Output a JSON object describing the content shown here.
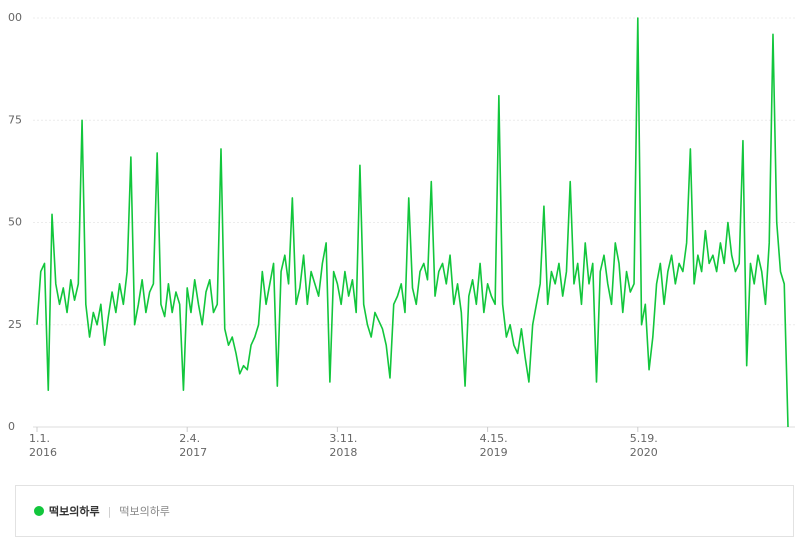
{
  "chart_data": {
    "type": "line",
    "yticks": [
      0,
      25,
      50,
      75,
      {
        "value": 100,
        "label": "00"
      }
    ],
    "ylim": [
      0,
      100
    ],
    "grid": true,
    "categories": [
      "1.1.",
      null,
      null,
      null,
      null,
      null,
      null,
      null,
      null,
      null,
      null,
      null,
      null,
      null,
      null,
      null,
      null,
      null,
      null,
      null,
      null,
      null,
      null,
      null,
      null,
      null,
      null,
      null,
      null,
      null,
      null,
      null,
      null,
      null,
      null,
      null,
      null,
      null,
      null,
      null,
      "2.4.",
      null,
      null,
      null,
      null,
      null,
      null,
      null,
      null,
      null,
      null,
      null,
      null,
      null,
      null,
      null,
      null,
      null,
      null,
      null,
      null,
      null,
      null,
      null,
      null,
      null,
      null,
      null,
      null,
      null,
      null,
      null,
      null,
      null,
      null,
      null,
      null,
      null,
      null,
      null,
      "3.11.",
      null,
      null,
      null,
      null,
      null,
      null,
      null,
      null,
      null,
      null,
      null,
      null,
      null,
      null,
      null,
      null,
      null,
      null,
      null,
      null,
      null,
      null,
      null,
      null,
      null,
      null,
      null,
      null,
      null,
      null,
      null,
      null,
      null,
      null,
      null,
      null,
      null,
      null,
      null,
      "4.15.",
      null,
      null,
      null,
      null,
      null,
      null,
      null,
      null,
      null,
      null,
      null,
      null,
      null,
      null,
      null,
      null,
      null,
      null,
      null,
      null,
      null,
      null,
      null,
      null,
      null,
      null,
      null,
      null,
      null,
      null,
      null,
      null,
      null,
      null,
      null,
      null,
      null,
      null,
      null,
      "5.19.",
      null,
      null,
      null,
      null,
      null,
      null,
      null,
      null,
      null,
      null,
      null,
      null,
      null,
      null,
      null,
      null,
      null,
      null,
      null,
      null,
      null,
      null,
      null,
      null,
      null,
      null,
      null,
      null,
      null,
      null,
      null,
      null,
      null,
      null,
      null,
      null,
      null,
      null,
      null,
      null
    ],
    "category_years": [
      "2016",
      null,
      null,
      null,
      null,
      null,
      null,
      null,
      null,
      null,
      null,
      null,
      null,
      null,
      null,
      null,
      null,
      null,
      null,
      null,
      null,
      null,
      null,
      null,
      null,
      null,
      null,
      null,
      null,
      null,
      null,
      null,
      null,
      null,
      null,
      null,
      null,
      null,
      null,
      null,
      "2017",
      null,
      null,
      null,
      null,
      null,
      null,
      null,
      null,
      null,
      null,
      null,
      null,
      null,
      null,
      null,
      null,
      null,
      null,
      null,
      null,
      null,
      null,
      null,
      null,
      null,
      null,
      null,
      null,
      null,
      null,
      null,
      null,
      null,
      null,
      null,
      null,
      null,
      null,
      null,
      "2018",
      null,
      null,
      null,
      null,
      null,
      null,
      null,
      null,
      null,
      null,
      null,
      null,
      null,
      null,
      null,
      null,
      null,
      null,
      null,
      null,
      null,
      null,
      null,
      null,
      null,
      null,
      null,
      null,
      null,
      null,
      null,
      null,
      null,
      null,
      null,
      null,
      null,
      null,
      null,
      "2019",
      null,
      null,
      null,
      null,
      null,
      null,
      null,
      null,
      null,
      null,
      null,
      null,
      null,
      null,
      null,
      null,
      null,
      null,
      null,
      null,
      null,
      null,
      null,
      null,
      null,
      null,
      null,
      null,
      null,
      null,
      null,
      null,
      null,
      null,
      null,
      null,
      null,
      null,
      null,
      "2020",
      null,
      null,
      null,
      null,
      null,
      null,
      null,
      null,
      null,
      null,
      null,
      null,
      null,
      null,
      null,
      null,
      null,
      null,
      null,
      null,
      null,
      null,
      null,
      null,
      null,
      null,
      null,
      null,
      null,
      null,
      null,
      null,
      null,
      null,
      null,
      null,
      null,
      null,
      null,
      null
    ],
    "series": [
      {
        "name": "떡보의하루",
        "label": "떡보의하루",
        "color": "#12c63c",
        "values": [
          25,
          38,
          40,
          9,
          52,
          35,
          30,
          34,
          28,
          36,
          31,
          35,
          75,
          30,
          22,
          28,
          25,
          30,
          20,
          27,
          33,
          28,
          35,
          30,
          38,
          66,
          25,
          30,
          36,
          28,
          33,
          35,
          67,
          30,
          27,
          35,
          28,
          33,
          30,
          9,
          34,
          28,
          36,
          30,
          25,
          33,
          36,
          28,
          30,
          68,
          24,
          20,
          22,
          18,
          13,
          15,
          14,
          20,
          22,
          25,
          38,
          30,
          35,
          40,
          10,
          38,
          42,
          35,
          56,
          30,
          34,
          42,
          30,
          38,
          35,
          32,
          40,
          45,
          11,
          38,
          35,
          30,
          38,
          32,
          36,
          28,
          64,
          30,
          25,
          22,
          28,
          26,
          24,
          20,
          12,
          30,
          32,
          35,
          28,
          56,
          34,
          30,
          38,
          40,
          36,
          60,
          32,
          38,
          40,
          35,
          42,
          30,
          35,
          28,
          10,
          32,
          36,
          30,
          40,
          28,
          35,
          32,
          30,
          81,
          30,
          22,
          25,
          20,
          18,
          24,
          17,
          11,
          25,
          30,
          35,
          54,
          30,
          38,
          35,
          40,
          32,
          38,
          60,
          35,
          40,
          30,
          45,
          35,
          40,
          11,
          38,
          42,
          35,
          30,
          45,
          40,
          28,
          38,
          33,
          35,
          100,
          25,
          30,
          14,
          22,
          35,
          40,
          30,
          38,
          42,
          35,
          40,
          38,
          45,
          68,
          35,
          42,
          38,
          48,
          40,
          42,
          38,
          45,
          40,
          50,
          42,
          38,
          40,
          70,
          15,
          40,
          35,
          42,
          38,
          30,
          45,
          96,
          50,
          38,
          35,
          0
        ]
      }
    ]
  }
}
